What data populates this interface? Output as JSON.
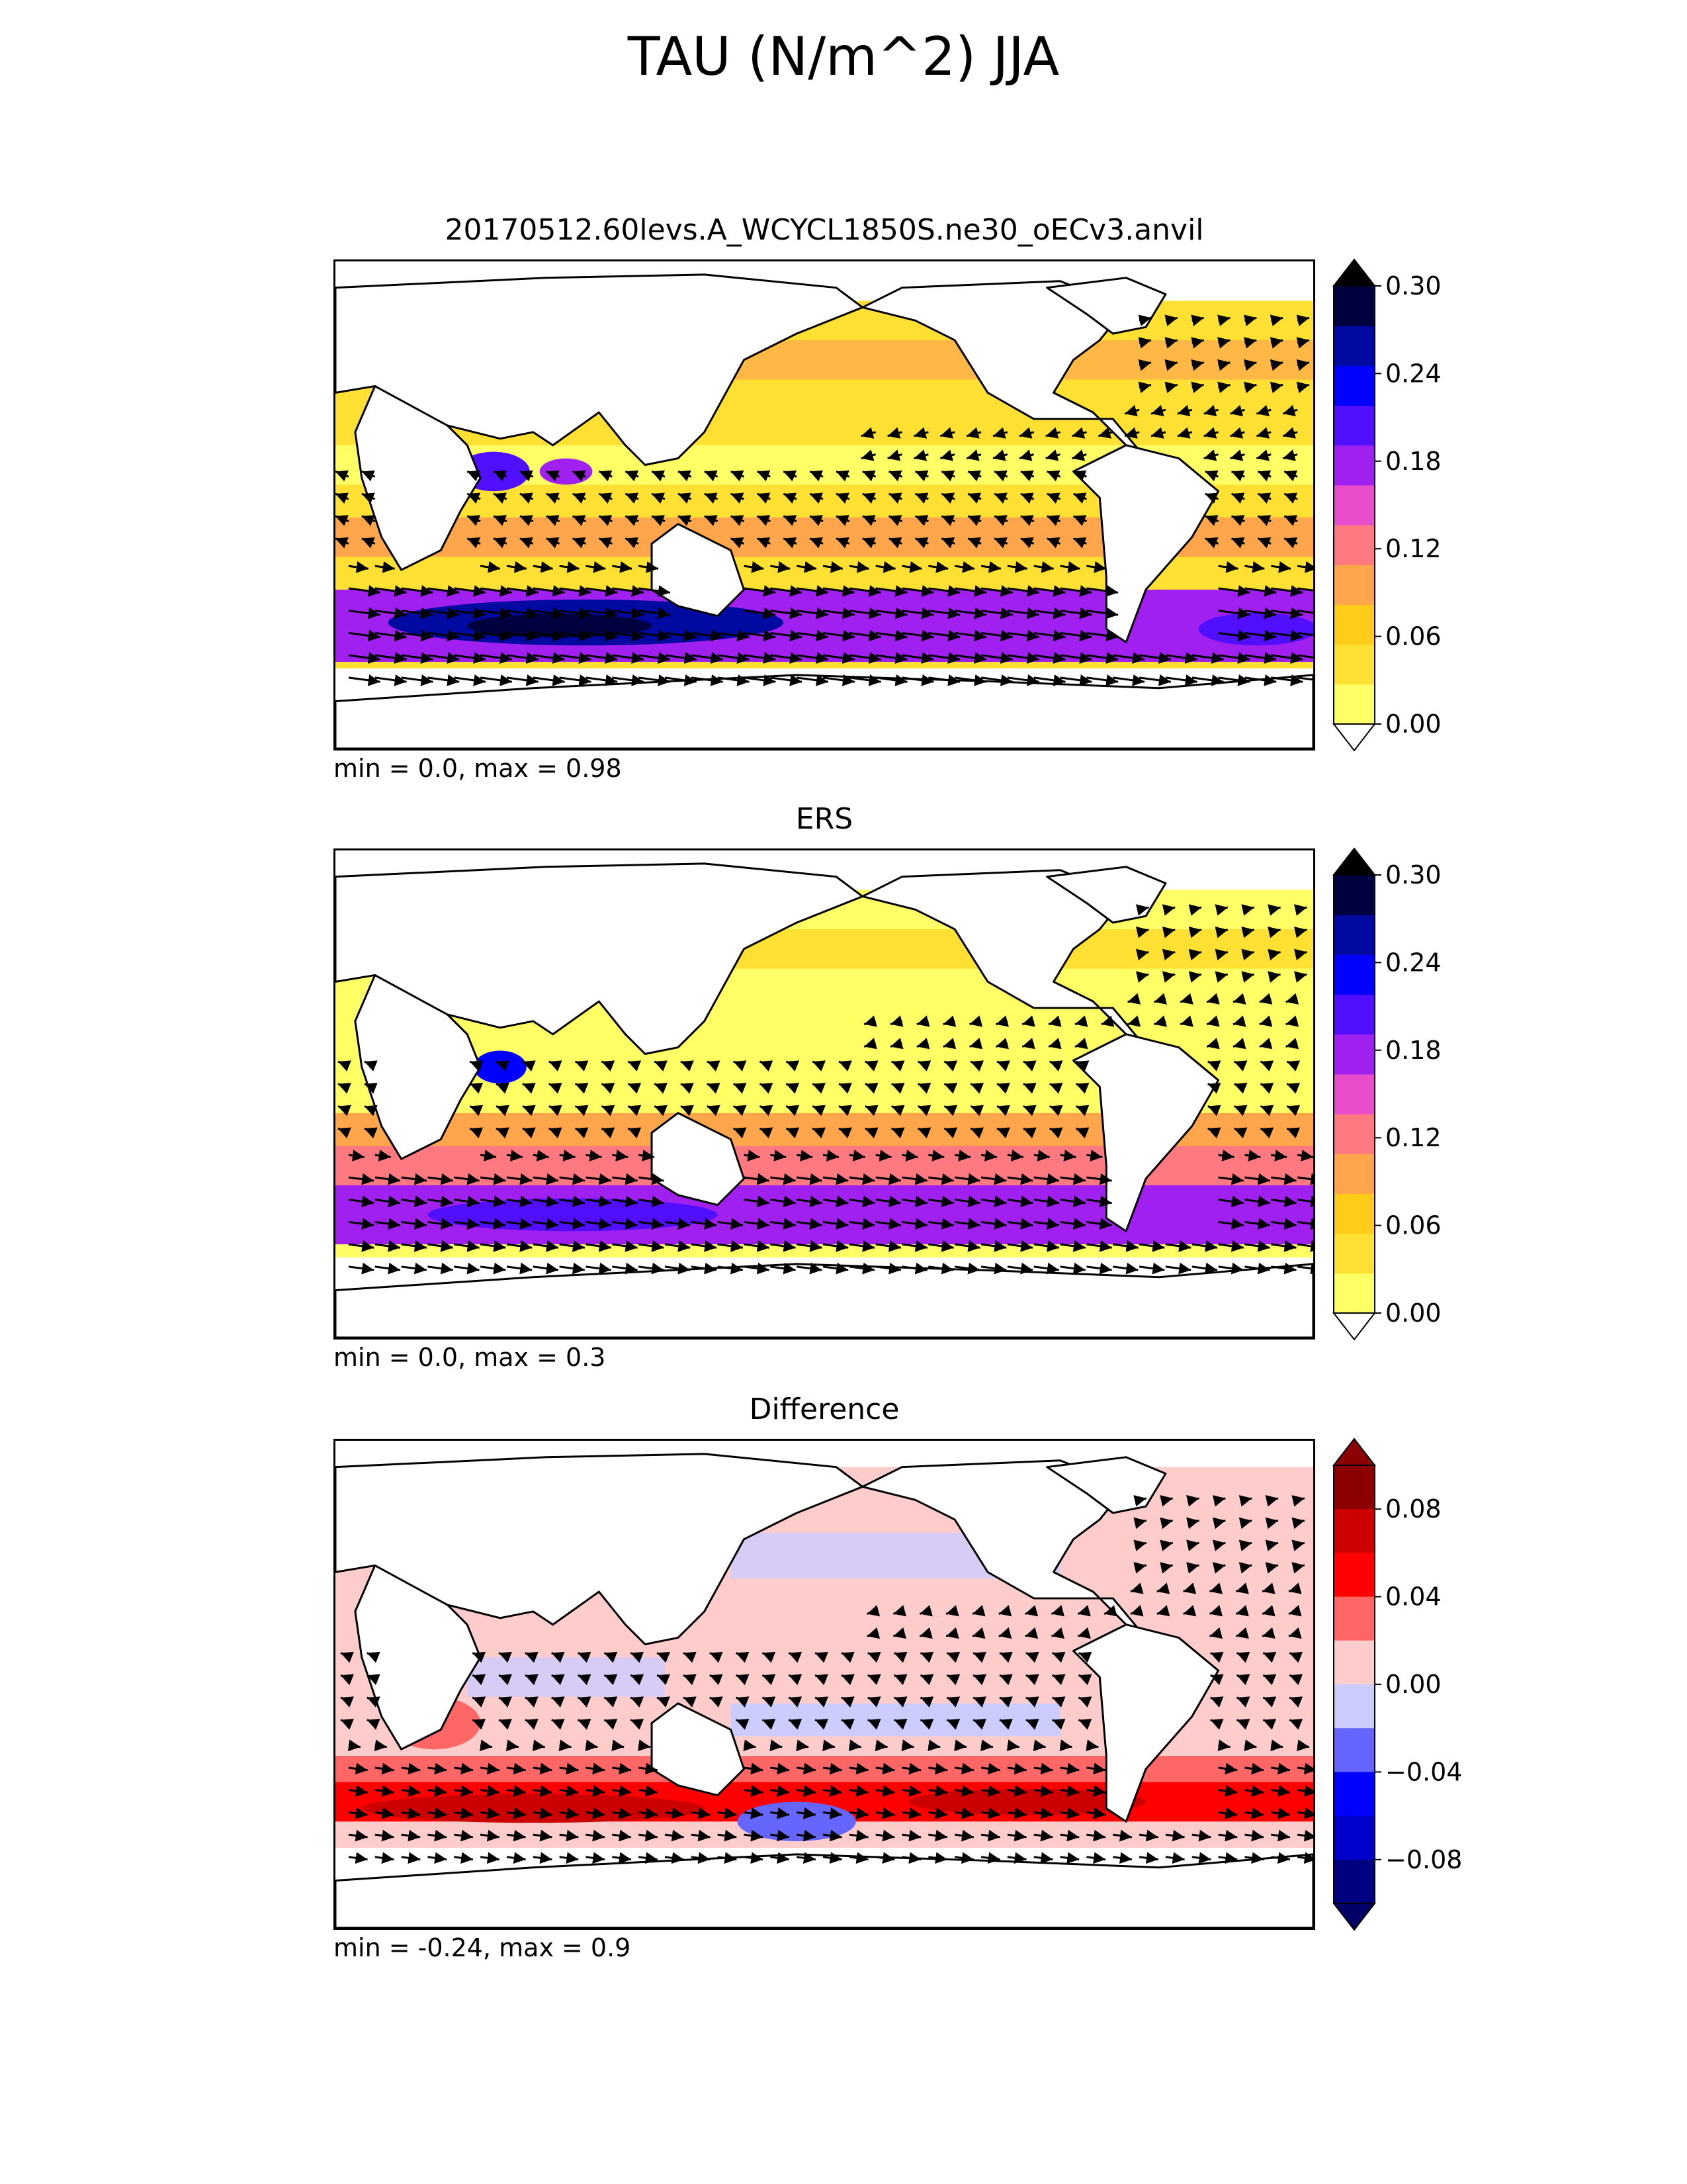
{
  "figure": {
    "title": "TAU (N/m^2) JJA"
  },
  "panels": [
    {
      "key": "test",
      "title": "20170512.60levs.A_WCYCL1850S.ne30_oECv3.anvil",
      "stats": "min = 0.0, max = 0.98"
    },
    {
      "key": "ref",
      "title": "ERS",
      "stats": "min = 0.0, max = 0.3"
    },
    {
      "key": "diff",
      "title": "Difference",
      "stats": "min = -0.24, max = 0.9"
    }
  ],
  "colorbars": {
    "field": {
      "ticks": [
        "0.00",
        "0.06",
        "0.12",
        "0.18",
        "0.24",
        "0.30"
      ],
      "colors": [
        "#ffff66",
        "#ffe033",
        "#ffcc1a",
        "#ffa64d",
        "#ff7a80",
        "#e84dcc",
        "#a020f0",
        "#5010ff",
        "#0000ff",
        "#000aa0",
        "#000040"
      ],
      "over_color": "#000000",
      "under_color": "#ffffff"
    },
    "diff": {
      "ticks": [
        "0.08",
        "0.04",
        "0.00",
        "−0.04",
        "−0.08"
      ],
      "colors": [
        "#8b0000",
        "#cc0000",
        "#ff0000",
        "#ff6666",
        "#ffcccc",
        "#ccccff",
        "#6666ff",
        "#0000ff",
        "#0000cc",
        "#000080"
      ],
      "over_color": "#8b0000",
      "under_color": "#000066"
    }
  }
}
